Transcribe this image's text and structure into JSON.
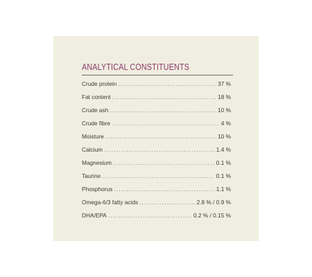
{
  "heading": "ANALYTICAL CONSTITUENTS",
  "rows": [
    {
      "label": "Crude protein",
      "value": "37 %"
    },
    {
      "label": "Fat content",
      "value": "18 %"
    },
    {
      "label": "Crude ash",
      "value": "10 %"
    },
    {
      "label": "Crude fibre",
      "value": "4 %"
    },
    {
      "label": "Moisture",
      "value": "10 %"
    },
    {
      "label": "Calcium",
      "value": "1.4 %"
    },
    {
      "label": "Magnesium",
      "value": "0.1 %"
    },
    {
      "label": "Taurine",
      "value": "0.1 %"
    },
    {
      "label": "Phosphorus",
      "value": "1.1 %"
    },
    {
      "label": "Omega-6/3 fatty acids",
      "value": "2.8 % / 0.9 %"
    },
    {
      "label": "DHA/EPA",
      "value": "0.2 % / 0.15 %"
    }
  ],
  "colors": {
    "panel_background": "#f0eee0",
    "heading": "#8b3a6a",
    "text": "#3a3a36"
  }
}
